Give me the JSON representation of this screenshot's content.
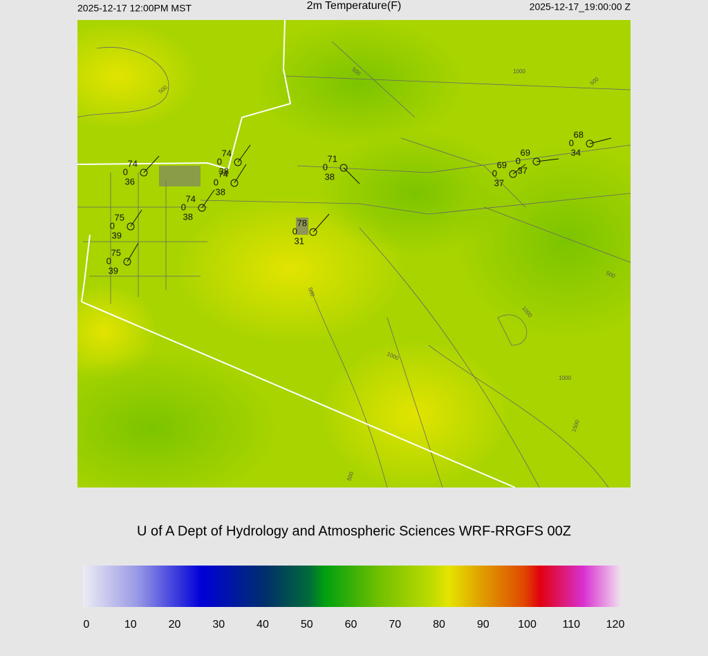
{
  "header": {
    "left": "2025-12-17 12:00PM MST",
    "title": "2m Temperature(F)",
    "right": "2025-12-17_19:00:00 Z"
  },
  "stations": [
    {
      "temperature": "74",
      "wind": "0",
      "dewpoint": "36"
    },
    {
      "temperature": "74",
      "wind": "0",
      "dewpoint": "38"
    },
    {
      "temperature": "74",
      "wind": "0",
      "dewpoint": "38"
    },
    {
      "temperature": "74",
      "wind": "0",
      "dewpoint": "38"
    },
    {
      "temperature": "75",
      "wind": "0",
      "dewpoint": "39"
    },
    {
      "temperature": "75",
      "wind": "0",
      "dewpoint": "39"
    },
    {
      "temperature": "78",
      "wind": "0",
      "dewpoint": "31"
    },
    {
      "temperature": "71",
      "wind": "0",
      "dewpoint": "38"
    },
    {
      "temperature": "69",
      "wind": "0",
      "dewpoint": "37"
    },
    {
      "temperature": "69",
      "wind": "0",
      "dewpoint": "37"
    },
    {
      "temperature": "68",
      "wind": "0",
      "dewpoint": "34"
    }
  ],
  "contour_labels": [
    "500",
    "500",
    "1000",
    "500",
    "500",
    "500",
    "1000",
    "1000",
    "1000",
    "1500",
    "500"
  ],
  "credit": "U of A Dept of Hydrology and Atmospheric Sciences WRF-RRGFS 00Z",
  "colorbar": {
    "lim": [
      0,
      120
    ],
    "ticks": [
      0,
      10,
      20,
      30,
      40,
      50,
      60,
      70,
      80,
      90,
      100,
      110,
      120
    ]
  }
}
